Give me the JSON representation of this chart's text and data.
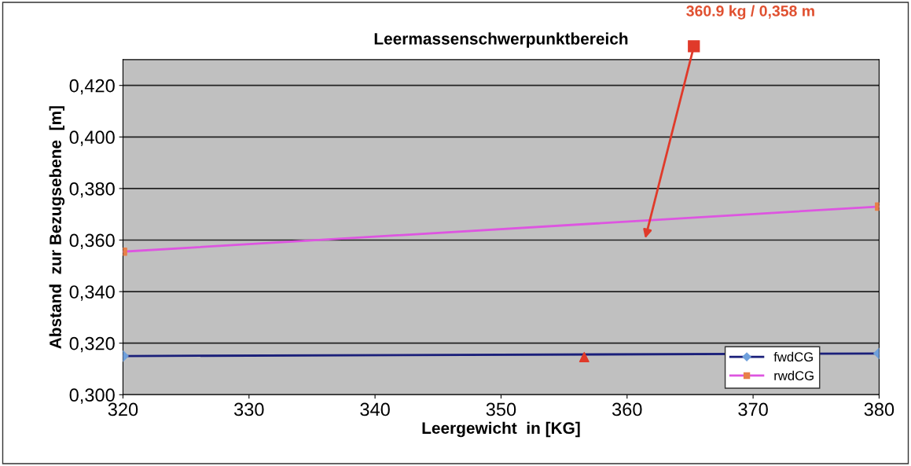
{
  "chart_data": {
    "type": "line",
    "title": "Leermassenschwerpunktbereich",
    "xlabel": "Leergewicht  in [KG]",
    "ylabel": "Abstand  zur Bezugsebene  [m]",
    "xlim": [
      320,
      380
    ],
    "xticks": [
      320,
      330,
      340,
      350,
      360,
      370,
      380
    ],
    "ylim": [
      0.3,
      0.43
    ],
    "yticks": [
      {
        "value": 0.3,
        "label": "0,300"
      },
      {
        "value": 0.32,
        "label": "0,320"
      },
      {
        "value": 0.34,
        "label": "0,340"
      },
      {
        "value": 0.36,
        "label": "0,360"
      },
      {
        "value": 0.38,
        "label": "0,380"
      },
      {
        "value": 0.4,
        "label": "0,400"
      },
      {
        "value": 0.42,
        "label": "0,420"
      }
    ],
    "grid": "y",
    "legend": "bottom right",
    "series": [
      {
        "name": "fwdCG",
        "color": "#1a1f7a",
        "colors": [
          "#6fa0dc",
          "#6fa0dc"
        ],
        "marker": "diamond",
        "x": [
          320,
          380
        ],
        "values": [
          0.315,
          0.316
        ]
      },
      {
        "name": "rwdCG",
        "color": "#dd55e0",
        "colors": [
          "#e8804a",
          "#e8804a"
        ],
        "marker": "square",
        "x": [
          320,
          380
        ],
        "values": [
          0.3555,
          0.373
        ]
      },
      {
        "type": "scatter",
        "color": "#e03a2a",
        "marker": "triangle",
        "x": [
          356.6
        ],
        "values": [
          0.3146
        ]
      }
    ],
    "annotations": [
      "360.9 kg / 0,358 m"
    ]
  }
}
